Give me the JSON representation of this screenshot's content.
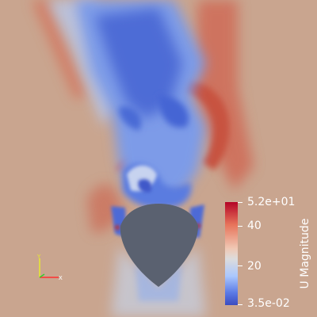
{
  "colorbar": {
    "title": "U Magnitude",
    "max_label": "5.2e+01",
    "label_40": "40",
    "label_20": "20",
    "min_label": "3.5e-02",
    "range": [
      0.035,
      52
    ],
    "colors": {
      "high": "#b40426",
      "mid": "#dddcdc",
      "low": "#3b4cc0"
    }
  },
  "scene": {
    "background": "#c8a48e",
    "body_color": "#5a6170",
    "body_shape": "rounded-diamond obstacle"
  },
  "axes_triad": {
    "x_color": "#ff3030",
    "y_color": "#e8e830",
    "z_color": "#30d030"
  }
}
